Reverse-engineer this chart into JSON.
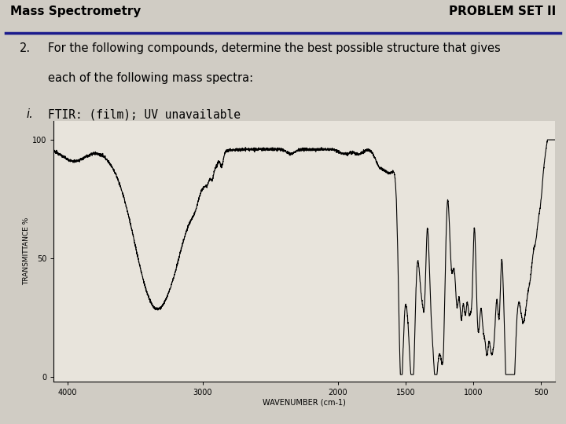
{
  "bg_color": "#d0ccc4",
  "header_text_left": "Mass Spectrometry",
  "header_text_right": "PROBLEM SET II",
  "header_line_color": "#1a1a8c",
  "problem_number": "2.",
  "problem_text_line1": "For the following compounds, determine the best possible structure that gives",
  "problem_text_line2": "each of the following mass spectra:",
  "subproblem_label": "i.",
  "subproblem_text": "FTIR: (film); UV unavailable",
  "plot_bg": "#e8e4dc",
  "xlabel": "WAVENUMBER (cm-1)",
  "ylabel": "TRANSMITTANCE %",
  "x_ticks": [
    4000,
    3000,
    2000,
    1500,
    1000,
    500
  ],
  "x_tick_labels": [
    "4000",
    "3000",
    "2000",
    "1500",
    "1000",
    "500"
  ],
  "y_ticks": [
    0,
    50,
    100
  ],
  "y_tick_labels": [
    "0",
    "50",
    "100"
  ],
  "xlim": [
    4100,
    400
  ],
  "ylim": [
    -2,
    108
  ],
  "line_color": "#000000",
  "line_width": 0.8
}
